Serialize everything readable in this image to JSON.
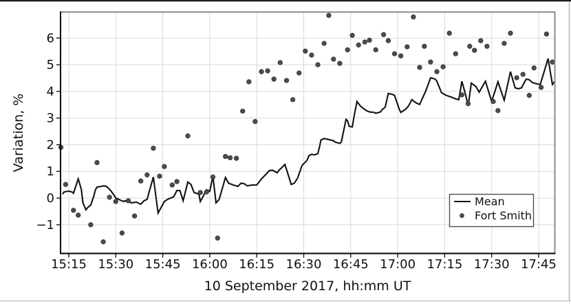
{
  "figure": {
    "background": "#ffffff",
    "frame": {
      "top_border_color": "#1c1c1c",
      "bottom_border_color": "#c9c9c9",
      "right_border_color": "#b8b8b8"
    }
  },
  "chart_data": {
    "type": "line+scatter",
    "title": "",
    "xlabel": "10 September 2017, hh:mm UT",
    "ylabel": "Variation, %",
    "x_unit": "minutes after 15:00 UT",
    "xlim": [
      12.4,
      170.3
    ],
    "ylim": [
      -2.08,
      6.97
    ],
    "grid": true,
    "grid_color": "#d9d9d9",
    "spine_dark_color": "#000000",
    "spine_gray_color": "#8a8a8a",
    "x_ticks": [
      {
        "t": 15,
        "label": "15:15"
      },
      {
        "t": 30,
        "label": "15:30"
      },
      {
        "t": 45,
        "label": "15:45"
      },
      {
        "t": 60,
        "label": "16:00"
      },
      {
        "t": 75,
        "label": "16:15"
      },
      {
        "t": 90,
        "label": "16:30"
      },
      {
        "t": 105,
        "label": "16:45"
      },
      {
        "t": 120,
        "label": "17:00"
      },
      {
        "t": 135,
        "label": "17:15"
      },
      {
        "t": 150,
        "label": "17:30"
      },
      {
        "t": 165,
        "label": "17:45"
      }
    ],
    "y_ticks": [
      {
        "v": 6,
        "label": "6"
      },
      {
        "v": 5,
        "label": "5"
      },
      {
        "v": 4,
        "label": "4"
      },
      {
        "v": 3,
        "label": "3"
      },
      {
        "v": 2,
        "label": "2"
      },
      {
        "v": 1,
        "label": "1"
      },
      {
        "v": 0,
        "label": "0"
      },
      {
        "v": -1,
        "label": "−1"
      }
    ],
    "legend": {
      "position": "center-right"
    },
    "series": [
      {
        "name": "Mean",
        "type": "line",
        "color": "#111111",
        "width": 2.1,
        "points": [
          [
            13,
            0.15
          ],
          [
            13.5,
            0.23
          ],
          [
            15,
            0.26
          ],
          [
            16,
            0.23
          ],
          [
            16.5,
            0.18
          ],
          [
            18,
            0.72
          ],
          [
            19,
            0.33
          ],
          [
            19.5,
            -0.18
          ],
          [
            20.5,
            -0.44
          ],
          [
            21,
            -0.36
          ],
          [
            22,
            -0.26
          ],
          [
            23,
            0.08
          ],
          [
            23.5,
            0.31
          ],
          [
            24,
            0.41
          ],
          [
            25.5,
            0.44
          ],
          [
            26,
            0.46
          ],
          [
            27,
            0.44
          ],
          [
            28,
            0.33
          ],
          [
            28.5,
            0.26
          ],
          [
            29.5,
            0.1
          ],
          [
            30,
            0
          ],
          [
            31,
            -0.05
          ],
          [
            31.5,
            -0.08
          ],
          [
            32.5,
            -0.13
          ],
          [
            33,
            -0.1
          ],
          [
            34.5,
            -0.15
          ],
          [
            35,
            -0.18
          ],
          [
            36.5,
            -0.15
          ],
          [
            37.5,
            -0.2
          ],
          [
            38,
            -0.23
          ],
          [
            39,
            -0.1
          ],
          [
            40,
            -0.05
          ],
          [
            42,
            0.79
          ],
          [
            43.5,
            -0.56
          ],
          [
            45.5,
            -0.13
          ],
          [
            46.5,
            -0.05
          ],
          [
            47.5,
            0
          ],
          [
            48.5,
            0.05
          ],
          [
            49.5,
            0.28
          ],
          [
            50.5,
            0.28
          ],
          [
            51.5,
            -0.1
          ],
          [
            53,
            0.6
          ],
          [
            54,
            0.51
          ],
          [
            55,
            0.21
          ],
          [
            56.5,
            0.15
          ],
          [
            57,
            -0.13
          ],
          [
            59,
            0.31
          ],
          [
            60,
            0.26
          ],
          [
            61,
            0.82
          ],
          [
            62,
            -0.18
          ],
          [
            63,
            -0.05
          ],
          [
            65,
            0.77
          ],
          [
            66,
            0.56
          ],
          [
            67.5,
            0.49
          ],
          [
            69,
            0.44
          ],
          [
            70,
            0.56
          ],
          [
            71,
            0.54
          ],
          [
            72,
            0.46
          ],
          [
            73.5,
            0.49
          ],
          [
            75,
            0.49
          ],
          [
            76.5,
            0.72
          ],
          [
            78,
            0.9
          ],
          [
            79,
            1.03
          ],
          [
            80,
            1.05
          ],
          [
            81.5,
            0.95
          ],
          [
            82,
            1.03
          ],
          [
            84,
            1.26
          ],
          [
            86,
            0.51
          ],
          [
            87,
            0.56
          ],
          [
            88,
            0.74
          ],
          [
            89.5,
            1.23
          ],
          [
            91,
            1.41
          ],
          [
            91.7,
            1.59
          ],
          [
            92.5,
            1.64
          ],
          [
            93.5,
            1.62
          ],
          [
            94.5,
            1.67
          ],
          [
            95,
            1.9
          ],
          [
            95.5,
            2.18
          ],
          [
            96.5,
            2.23
          ],
          [
            97.5,
            2.21
          ],
          [
            98.5,
            2.18
          ],
          [
            99.5,
            2.15
          ],
          [
            100,
            2.1
          ],
          [
            101.5,
            2.05
          ],
          [
            102,
            2.1
          ],
          [
            103.5,
            2.95
          ],
          [
            104,
            2.9
          ],
          [
            104.5,
            2.69
          ],
          [
            105.5,
            2.67
          ],
          [
            106,
            3.03
          ],
          [
            107,
            3.62
          ],
          [
            108,
            3.46
          ],
          [
            109,
            3.36
          ],
          [
            110,
            3.28
          ],
          [
            111,
            3.23
          ],
          [
            112.5,
            3.21
          ],
          [
            113,
            3.18
          ],
          [
            114.5,
            3.23
          ],
          [
            115,
            3.31
          ],
          [
            116,
            3.41
          ],
          [
            117,
            3.92
          ],
          [
            118,
            3.9
          ],
          [
            119,
            3.85
          ],
          [
            120.5,
            3.33
          ],
          [
            121,
            3.21
          ],
          [
            122.5,
            3.33
          ],
          [
            123.5,
            3.46
          ],
          [
            124.5,
            3.69
          ],
          [
            126,
            3.56
          ],
          [
            127,
            3.51
          ],
          [
            129,
            4.03
          ],
          [
            130.5,
            4.51
          ],
          [
            132,
            4.46
          ],
          [
            132.5,
            4.38
          ],
          [
            134,
            3.95
          ],
          [
            135.5,
            3.85
          ],
          [
            137,
            3.79
          ],
          [
            138.5,
            3.72
          ],
          [
            139.5,
            3.69
          ],
          [
            140.5,
            4.38
          ],
          [
            141.5,
            3.95
          ],
          [
            142.5,
            3.46
          ],
          [
            143.5,
            4.31
          ],
          [
            145,
            4.18
          ],
          [
            146,
            3.97
          ],
          [
            148,
            4.38
          ],
          [
            150,
            3.62
          ],
          [
            152,
            4.36
          ],
          [
            154,
            3.67
          ],
          [
            156,
            4.74
          ],
          [
            157.5,
            4.13
          ],
          [
            158.5,
            4.1
          ],
          [
            159.5,
            4.13
          ],
          [
            161,
            4.46
          ],
          [
            162,
            4.44
          ],
          [
            163,
            4.33
          ],
          [
            164.5,
            4.28
          ],
          [
            165.5,
            4.26
          ],
          [
            168,
            5.23
          ],
          [
            169.4,
            4.26
          ],
          [
            170.3,
            4.4
          ]
        ]
      },
      {
        "name": "Fort Smith",
        "type": "scatter",
        "color": "#4c4c4c",
        "edge_color": "#2e2e2e",
        "radius": 3.3,
        "points": [
          [
            12.5,
            1.9
          ],
          [
            14,
            0.51
          ],
          [
            16.5,
            -0.46
          ],
          [
            18,
            -0.64
          ],
          [
            22,
            -1.0
          ],
          [
            24,
            1.33
          ],
          [
            26,
            -1.64
          ],
          [
            28,
            0.03
          ],
          [
            30,
            -0.13
          ],
          [
            32,
            -1.31
          ],
          [
            34,
            -0.1
          ],
          [
            36,
            -0.67
          ],
          [
            38,
            0.64
          ],
          [
            40,
            0.87
          ],
          [
            42,
            1.87
          ],
          [
            44,
            0.82
          ],
          [
            45.5,
            1.18
          ],
          [
            48,
            0.49
          ],
          [
            49.5,
            0.62
          ],
          [
            53,
            2.33
          ],
          [
            57,
            0.21
          ],
          [
            59,
            0.23
          ],
          [
            61,
            0.79
          ],
          [
            62.5,
            -1.5
          ],
          [
            65,
            1.56
          ],
          [
            66.5,
            1.51
          ],
          [
            68.5,
            1.49
          ],
          [
            70.5,
            3.26
          ],
          [
            72.5,
            4.36
          ],
          [
            74.5,
            2.87
          ],
          [
            76.5,
            4.74
          ],
          [
            78.5,
            4.77
          ],
          [
            80.5,
            4.46
          ],
          [
            82.5,
            5.08
          ],
          [
            84.5,
            4.41
          ],
          [
            86.5,
            3.69
          ],
          [
            88.5,
            4.69
          ],
          [
            90.5,
            5.51
          ],
          [
            92.5,
            5.36
          ],
          [
            94.5,
            5.0
          ],
          [
            96.5,
            5.8
          ],
          [
            98,
            6.85
          ],
          [
            99.5,
            5.21
          ],
          [
            101.5,
            5.05
          ],
          [
            104,
            5.56
          ],
          [
            105.5,
            6.1
          ],
          [
            107.5,
            5.74
          ],
          [
            109.5,
            5.85
          ],
          [
            111,
            5.92
          ],
          [
            113,
            5.56
          ],
          [
            115.5,
            6.13
          ],
          [
            117,
            5.9
          ],
          [
            119,
            5.41
          ],
          [
            121,
            5.33
          ],
          [
            123,
            5.67
          ],
          [
            125,
            6.79
          ],
          [
            127,
            4.9
          ],
          [
            128.5,
            5.69
          ],
          [
            130.5,
            5.1
          ],
          [
            132.5,
            4.74
          ],
          [
            134.5,
            4.92
          ],
          [
            136.5,
            6.18
          ],
          [
            138.5,
            5.41
          ],
          [
            140.5,
            3.87
          ],
          [
            142.5,
            3.54
          ],
          [
            143,
            5.69
          ],
          [
            144.5,
            5.54
          ],
          [
            146.5,
            5.9
          ],
          [
            148.5,
            5.69
          ],
          [
            150.5,
            3.62
          ],
          [
            152,
            3.28
          ],
          [
            154,
            5.8
          ],
          [
            156,
            6.18
          ],
          [
            158,
            4.51
          ],
          [
            160,
            4.64
          ],
          [
            162,
            3.85
          ],
          [
            163.5,
            4.88
          ],
          [
            165.8,
            4.15
          ],
          [
            167.5,
            6.15
          ],
          [
            169.4,
            5.1
          ]
        ]
      }
    ]
  }
}
